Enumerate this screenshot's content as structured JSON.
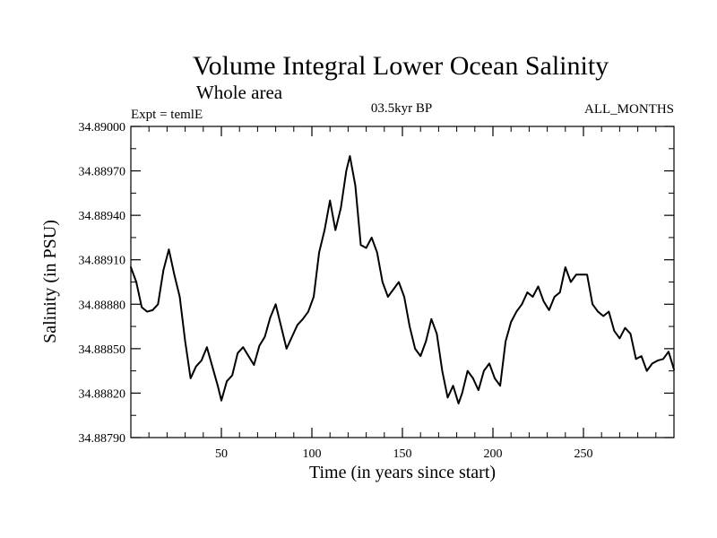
{
  "chart_data": {
    "type": "line",
    "title": "Volume Integral Lower Ocean Salinity",
    "subtitle": "Whole area",
    "experiment_label": "Expt = temlE",
    "period_label": "03.5kyr BP",
    "months_label": "ALL_MONTHS",
    "xlabel": "Time (in years since start)",
    "ylabel": "Salinity (in PSU)",
    "xlim": [
      0,
      300
    ],
    "ylim": [
      34.8879,
      34.89
    ],
    "x_ticks": [
      50,
      100,
      150,
      200,
      250
    ],
    "x_tick_labels": [
      "50",
      "100",
      "150",
      "200",
      "250"
    ],
    "y_ticks": [
      34.8879,
      34.8882,
      34.8885,
      34.8888,
      34.8891,
      34.8894,
      34.8897,
      34.89
    ],
    "y_tick_labels": [
      "34.88790",
      "34.88820",
      "34.88850",
      "34.88880",
      "34.88910",
      "34.88940",
      "34.88970",
      "34.89000"
    ],
    "grid": false,
    "series": [
      {
        "name": "salinity",
        "x": [
          0,
          3,
          6,
          9,
          12,
          15,
          18,
          21,
          24,
          27,
          30,
          33,
          36,
          39,
          42,
          45,
          48,
          50,
          53,
          56,
          59,
          62,
          65,
          68,
          71,
          74,
          77,
          80,
          83,
          86,
          89,
          92,
          95,
          98,
          101,
          104,
          107,
          110,
          113,
          116,
          119,
          121,
          124,
          127,
          130,
          133,
          136,
          139,
          142,
          145,
          148,
          151,
          154,
          157,
          160,
          163,
          166,
          169,
          172,
          175,
          178,
          181,
          183,
          186,
          189,
          192,
          195,
          198,
          201,
          204,
          207,
          210,
          213,
          216,
          219,
          222,
          225,
          228,
          231,
          234,
          237,
          240,
          243,
          246,
          249,
          252,
          255,
          258,
          261,
          264,
          267,
          270,
          273,
          276,
          279,
          282,
          285,
          288,
          291,
          294,
          297,
          300
        ],
        "y": [
          34.88905,
          34.88895,
          34.88878,
          34.88875,
          34.88876,
          34.8888,
          34.88903,
          34.88917,
          34.889,
          34.88885,
          34.88855,
          34.8883,
          34.88838,
          34.88842,
          34.88851,
          34.88838,
          34.88825,
          34.88815,
          34.88828,
          34.88832,
          34.88847,
          34.88851,
          34.88845,
          34.88839,
          34.88852,
          34.88858,
          34.88871,
          34.8888,
          34.88865,
          34.8885,
          34.88858,
          34.88866,
          34.8887,
          34.88875,
          34.88885,
          34.88915,
          34.8893,
          34.8895,
          34.8893,
          34.88945,
          34.8897,
          34.8898,
          34.8896,
          34.8892,
          34.88918,
          34.88925,
          34.88915,
          34.88895,
          34.88885,
          34.8889,
          34.88895,
          34.88885,
          34.88865,
          34.8885,
          34.88845,
          34.88855,
          34.8887,
          34.8886,
          34.88835,
          34.88817,
          34.88825,
          34.88813,
          34.8882,
          34.88835,
          34.8883,
          34.88822,
          34.88835,
          34.8884,
          34.8883,
          34.88825,
          34.88855,
          34.88868,
          34.88875,
          34.8888,
          34.88888,
          34.88885,
          34.88892,
          34.88882,
          34.88876,
          34.88885,
          34.88888,
          34.88905,
          34.88895,
          34.889,
          34.889,
          34.889,
          34.8888,
          34.88875,
          34.88872,
          34.88875,
          34.88862,
          34.88857,
          34.88864,
          34.8886,
          34.88843,
          34.88845,
          34.88835,
          34.8884,
          34.88842,
          34.88843,
          34.88848,
          34.88836
        ]
      }
    ]
  }
}
